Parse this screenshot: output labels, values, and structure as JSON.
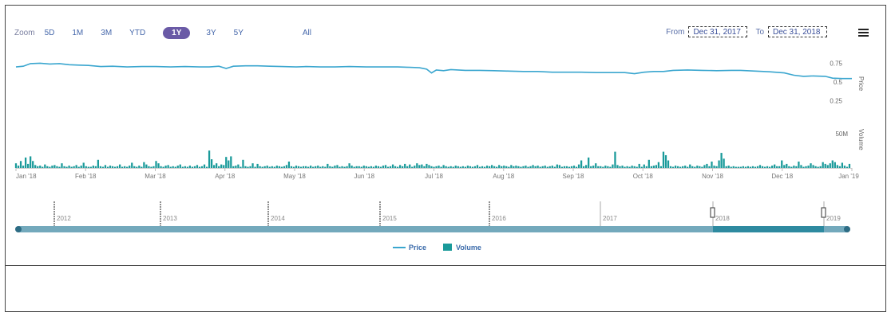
{
  "zoom": {
    "label": "Zoom",
    "buttons": [
      "5D",
      "1M",
      "3M",
      "YTD",
      "1Y",
      "3Y",
      "5Y",
      "All"
    ],
    "active": "1Y"
  },
  "range": {
    "from_label": "From",
    "from_value": "Dec 31, 2017",
    "to_label": "To",
    "to_value": "Dec 31, 2018"
  },
  "colors": {
    "price_line": "#3aa6cf",
    "volume_bar": "#1a9a9a",
    "navigator_fill": "#2e8aa0",
    "active_zoom": "#6a5aa6"
  },
  "chart_data": {
    "type": "line",
    "x_ticks": [
      "Jan '18",
      "Feb '18",
      "Mar '18",
      "Apr '18",
      "May '18",
      "Jun '18",
      "Jul '18",
      "Aug '18",
      "Sep '18",
      "Oct '18",
      "Nov '18",
      "Dec '18",
      "Jan '19"
    ],
    "price_axis": {
      "label": "Price",
      "ticks": [
        "0.75",
        "0.5",
        "0.25"
      ],
      "ylim": [
        0,
        0.85
      ]
    },
    "volume_axis": {
      "label": "Volume",
      "ticks": [
        "50M"
      ],
      "ylim": [
        0,
        70
      ]
    },
    "series": [
      {
        "name": "Price",
        "type": "line",
        "points": [
          [
            0,
            0.7
          ],
          [
            3,
            0.71
          ],
          [
            6,
            0.745
          ],
          [
            10,
            0.75
          ],
          [
            14,
            0.74
          ],
          [
            18,
            0.745
          ],
          [
            22,
            0.73
          ],
          [
            26,
            0.725
          ],
          [
            30,
            0.72
          ],
          [
            35,
            0.705
          ],
          [
            40,
            0.71
          ],
          [
            46,
            0.7
          ],
          [
            52,
            0.705
          ],
          [
            58,
            0.705
          ],
          [
            64,
            0.7
          ],
          [
            70,
            0.705
          ],
          [
            76,
            0.7
          ],
          [
            80,
            0.7
          ],
          [
            84,
            0.71
          ],
          [
            87,
            0.68
          ],
          [
            90,
            0.71
          ],
          [
            95,
            0.715
          ],
          [
            100,
            0.715
          ],
          [
            105,
            0.71
          ],
          [
            110,
            0.705
          ],
          [
            116,
            0.7
          ],
          [
            120,
            0.705
          ],
          [
            126,
            0.7
          ],
          [
            132,
            0.7
          ],
          [
            138,
            0.705
          ],
          [
            145,
            0.7
          ],
          [
            152,
            0.7
          ],
          [
            158,
            0.7
          ],
          [
            163,
            0.695
          ],
          [
            167,
            0.69
          ],
          [
            170,
            0.67
          ],
          [
            172,
            0.62
          ],
          [
            174,
            0.66
          ],
          [
            177,
            0.65
          ],
          [
            180,
            0.665
          ],
          [
            186,
            0.655
          ],
          [
            192,
            0.655
          ],
          [
            198,
            0.65
          ],
          [
            204,
            0.645
          ],
          [
            210,
            0.64
          ],
          [
            216,
            0.64
          ],
          [
            222,
            0.63
          ],
          [
            228,
            0.63
          ],
          [
            234,
            0.63
          ],
          [
            240,
            0.625
          ],
          [
            246,
            0.625
          ],
          [
            252,
            0.625
          ],
          [
            256,
            0.61
          ],
          [
            260,
            0.63
          ],
          [
            264,
            0.64
          ],
          [
            268,
            0.64
          ],
          [
            272,
            0.655
          ],
          [
            278,
            0.66
          ],
          [
            284,
            0.655
          ],
          [
            290,
            0.65
          ],
          [
            296,
            0.655
          ],
          [
            300,
            0.655
          ],
          [
            306,
            0.645
          ],
          [
            312,
            0.635
          ],
          [
            318,
            0.62
          ],
          [
            322,
            0.59
          ],
          [
            326,
            0.575
          ],
          [
            330,
            0.58
          ],
          [
            335,
            0.575
          ],
          [
            338,
            0.55
          ],
          [
            342,
            0.545
          ],
          [
            346,
            0.545
          ]
        ]
      },
      {
        "name": "Volume",
        "type": "bar",
        "values": [
          8,
          4,
          12,
          4,
          18,
          7,
          20,
          12,
          5,
          3,
          4,
          2,
          6,
          3,
          2,
          4,
          5,
          3,
          2,
          8,
          3,
          2,
          4,
          2,
          3,
          5,
          2,
          4,
          9,
          3,
          2,
          2,
          4,
          3,
          14,
          3,
          2,
          5,
          2,
          4,
          3,
          2,
          3,
          6,
          2,
          3,
          2,
          4,
          9,
          3,
          2,
          4,
          2,
          10,
          6,
          3,
          2,
          3,
          12,
          8,
          3,
          2,
          4,
          5,
          2,
          3,
          2,
          4,
          6,
          2,
          3,
          2,
          4,
          2,
          3,
          5,
          2,
          3,
          6,
          2,
          30,
          15,
          5,
          8,
          3,
          6,
          5,
          19,
          13,
          20,
          3,
          4,
          6,
          2,
          14,
          3,
          2,
          3,
          8,
          2,
          7,
          3,
          2,
          3,
          4,
          2,
          3,
          2,
          4,
          3,
          2,
          3,
          5,
          11,
          3,
          2,
          4,
          3,
          2,
          3,
          3,
          2,
          4,
          2,
          3,
          4,
          2,
          3,
          2,
          7,
          3,
          2,
          4,
          5,
          2,
          3,
          2,
          3,
          8,
          4,
          2,
          3,
          3,
          2,
          4,
          3,
          2,
          3,
          2,
          4,
          3,
          2,
          4,
          5,
          2,
          3,
          6,
          3,
          2,
          5,
          3,
          7,
          3,
          6,
          2,
          4,
          8,
          5,
          6,
          3,
          7,
          5,
          3,
          2,
          3,
          4,
          2,
          5,
          3,
          2,
          3,
          2,
          4,
          3,
          2,
          3,
          2,
          4,
          3,
          2,
          3,
          5,
          2,
          3,
          2,
          4,
          3,
          5,
          3,
          2,
          5,
          3,
          4,
          3,
          2,
          5,
          3,
          4,
          3,
          2,
          3,
          4,
          2,
          3,
          5,
          3,
          4,
          2,
          3,
          4,
          2,
          3,
          4,
          2,
          6,
          5,
          2,
          3,
          3,
          2,
          3,
          4,
          2,
          6,
          13,
          3,
          5,
          18,
          3,
          4,
          8,
          3,
          3,
          2,
          4,
          3,
          2,
          6,
          28,
          5,
          3,
          4,
          2,
          3,
          2,
          4,
          3,
          2,
          7,
          2,
          6,
          3,
          14,
          3,
          4,
          5,
          10,
          3,
          28,
          22,
          13,
          3,
          2,
          4,
          3,
          2,
          3,
          4,
          2,
          6,
          3,
          2,
          4,
          3,
          2,
          5,
          7,
          3,
          11,
          4,
          3,
          13,
          26,
          16,
          3,
          4,
          2,
          3,
          2,
          2,
          2,
          3,
          2,
          3,
          2,
          3,
          2,
          3,
          5,
          3,
          2,
          3,
          2,
          4,
          6,
          3,
          3,
          13,
          5,
          7,
          3,
          2,
          4,
          3,
          11,
          5,
          2,
          3,
          4,
          8,
          5,
          3,
          2,
          3,
          10,
          7,
          5,
          8,
          13,
          10,
          5,
          3,
          9,
          4,
          2,
          7
        ]
      }
    ],
    "navigator": {
      "year_labels": [
        "2012",
        "2013",
        "2014",
        "2015",
        "2016",
        "2017",
        "2018",
        "2019"
      ],
      "selected_range": [
        "2018",
        "2019"
      ]
    },
    "legend": {
      "position": "bottom-center",
      "items": [
        "Price",
        "Volume"
      ]
    }
  }
}
